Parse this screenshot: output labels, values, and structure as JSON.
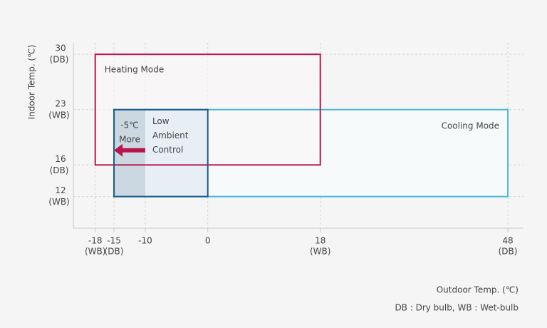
{
  "chart_data": {
    "type": "range",
    "y_label": "Indoor Temp. (℃)",
    "x_label": "Outdoor Temp. (℃)",
    "footnote": "DB : Dry bulb, WB : Wet-bulb",
    "xlim": [
      -21.5,
      50.5
    ],
    "ylim": [
      8,
      32
    ],
    "xticks": [
      {
        "value": -18,
        "label": "-18",
        "basis": "(WB)"
      },
      {
        "value": -15,
        "label": "-15",
        "basis": "(DB)"
      },
      -10,
      0,
      {
        "value": 18,
        "label": "18",
        "basis": "(WB)"
      },
      {
        "value": 48,
        "label": "48",
        "basis": "(DB)"
      }
    ],
    "yticks": [
      {
        "value": 30,
        "label": "30",
        "basis": "(DB)"
      },
      {
        "value": 23,
        "label": "23",
        "basis": "(WB)"
      },
      {
        "value": 16,
        "label": "16",
        "basis": "(DB)"
      },
      {
        "value": 12,
        "label": "12",
        "basis": "(WB)"
      }
    ],
    "grid": true,
    "series": [
      {
        "name": "Heating Mode",
        "color": "#b8174b",
        "fill": "#faf6f7",
        "x": [
          -18,
          18
        ],
        "y": [
          16,
          30
        ]
      },
      {
        "name": "Cooling Mode",
        "color": "#4cb6d6",
        "fill": "#f7fafb",
        "x": [
          -15,
          48
        ],
        "y": [
          12,
          23
        ]
      },
      {
        "name": "Low Ambient Control",
        "color": "#1b5b8c",
        "fill": "#e8eff4",
        "x": [
          -15,
          0
        ],
        "y": [
          12,
          23
        ]
      }
    ],
    "extension": {
      "label": "-5℃",
      "sublabel": "More",
      "color": "#b8174b",
      "fill": "#cbd8e1",
      "x": [
        -15,
        -10
      ],
      "y": [
        12,
        23
      ]
    }
  }
}
